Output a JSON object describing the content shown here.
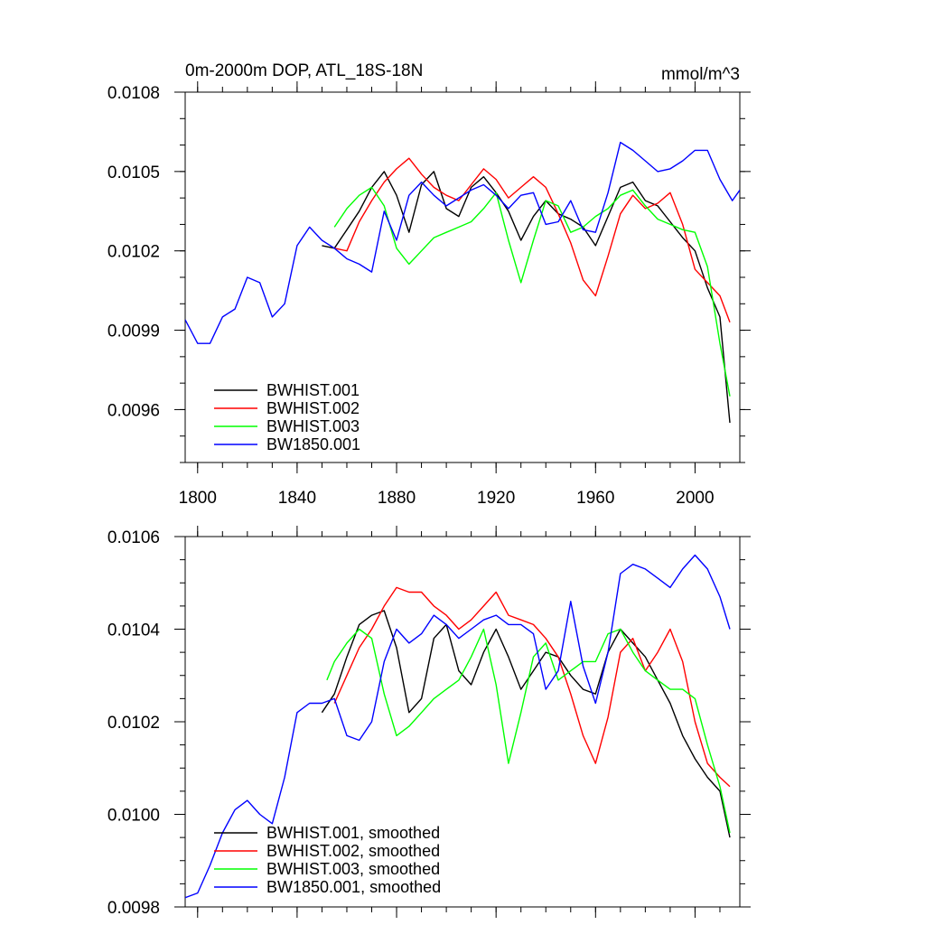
{
  "chart_data": [
    {
      "type": "line",
      "title": "0m-2000m DOP, ATL_18S-18N",
      "units": "mmol/m^3",
      "xlabel": "",
      "ylabel": "",
      "xlim": [
        1795,
        2018
      ],
      "ylim": [
        0.0094,
        0.0108
      ],
      "x_ticks": [
        1800,
        1840,
        1880,
        1920,
        1960,
        2000
      ],
      "y_ticks": [
        0.0096,
        0.0099,
        0.0102,
        0.0105,
        0.0108
      ],
      "y_tick_labels": [
        "0.0096",
        "0.0099",
        "0.0102",
        "0.0105",
        "0.0108"
      ],
      "legend_position": "bottom-left",
      "series": [
        {
          "name": "BWHIST.001",
          "color": "#000000",
          "x": [
            1850,
            1855,
            1860,
            1865,
            1870,
            1875,
            1880,
            1885,
            1890,
            1895,
            1900,
            1905,
            1910,
            1915,
            1920,
            1925,
            1930,
            1935,
            1940,
            1945,
            1950,
            1955,
            1960,
            1965,
            1970,
            1975,
            1980,
            1985,
            1990,
            1995,
            2000,
            2005,
            2010,
            2014
          ],
          "y": [
            0.01022,
            0.01021,
            0.01028,
            0.01035,
            0.01044,
            0.0105,
            0.01041,
            0.01027,
            0.01045,
            0.0105,
            0.01036,
            0.01033,
            0.01044,
            0.01048,
            0.01042,
            0.01035,
            0.01024,
            0.01033,
            0.01039,
            0.01034,
            0.01032,
            0.01029,
            0.01022,
            0.01033,
            0.01044,
            0.01046,
            0.01039,
            0.01037,
            0.01031,
            0.01025,
            0.0102,
            0.01006,
            0.00995,
            0.00955
          ]
        },
        {
          "name": "BWHIST.002",
          "color": "#ff0000",
          "x": [
            1855,
            1860,
            1865,
            1870,
            1875,
            1880,
            1885,
            1890,
            1895,
            1900,
            1905,
            1910,
            1915,
            1920,
            1925,
            1930,
            1935,
            1940,
            1945,
            1950,
            1955,
            1960,
            1965,
            1970,
            1975,
            1980,
            1985,
            1990,
            1995,
            2000,
            2005,
            2010,
            2014
          ],
          "y": [
            0.01021,
            0.0102,
            0.01031,
            0.01039,
            0.01046,
            0.01051,
            0.01055,
            0.01049,
            0.01044,
            0.01041,
            0.01039,
            0.01045,
            0.01051,
            0.01047,
            0.0104,
            0.01044,
            0.01048,
            0.01044,
            0.01034,
            0.01023,
            0.01009,
            0.01003,
            0.01018,
            0.01034,
            0.01041,
            0.01036,
            0.01038,
            0.01042,
            0.0103,
            0.01013,
            0.01008,
            0.01003,
            0.00993
          ]
        },
        {
          "name": "BWHIST.003",
          "color": "#00ff00",
          "x": [
            1855,
            1860,
            1865,
            1870,
            1875,
            1880,
            1885,
            1890,
            1895,
            1900,
            1905,
            1910,
            1915,
            1920,
            1925,
            1930,
            1935,
            1940,
            1945,
            1950,
            1955,
            1960,
            1965,
            1970,
            1975,
            1980,
            1985,
            1990,
            1995,
            2000,
            2005,
            2010,
            2014
          ],
          "y": [
            0.01029,
            0.01036,
            0.01041,
            0.01044,
            0.01037,
            0.01021,
            0.01015,
            0.0102,
            0.01025,
            0.01027,
            0.01029,
            0.01031,
            0.01036,
            0.01042,
            0.01024,
            0.01008,
            0.01024,
            0.01039,
            0.01037,
            0.01027,
            0.01029,
            0.01033,
            0.01036,
            0.01041,
            0.01043,
            0.01037,
            0.01032,
            0.0103,
            0.01028,
            0.01027,
            0.01014,
            0.00985,
            0.00965
          ]
        },
        {
          "name": "BW1850.001",
          "color": "#0000ff",
          "x": [
            1795,
            1800,
            1805,
            1810,
            1815,
            1820,
            1825,
            1830,
            1835,
            1840,
            1845,
            1850,
            1855,
            1860,
            1865,
            1870,
            1875,
            1880,
            1885,
            1890,
            1895,
            1900,
            1905,
            1910,
            1915,
            1920,
            1925,
            1930,
            1935,
            1940,
            1945,
            1950,
            1955,
            1960,
            1965,
            1970,
            1975,
            1980,
            1985,
            1990,
            1995,
            2000,
            2005,
            2010,
            2015,
            2018
          ],
          "y": [
            0.00994,
            0.00985,
            0.00985,
            0.00995,
            0.00998,
            0.0101,
            0.01008,
            0.00995,
            0.01,
            0.01022,
            0.01029,
            0.01024,
            0.01021,
            0.01017,
            0.01015,
            0.01012,
            0.01035,
            0.01024,
            0.01041,
            0.01046,
            0.01041,
            0.01037,
            0.0104,
            0.01043,
            0.01045,
            0.01041,
            0.01036,
            0.01041,
            0.01042,
            0.0103,
            0.01031,
            0.01039,
            0.01028,
            0.01027,
            0.01042,
            0.01061,
            0.01058,
            0.01054,
            0.0105,
            0.01051,
            0.01054,
            0.01058,
            0.01058,
            0.01047,
            0.01039,
            0.01043
          ]
        }
      ]
    },
    {
      "type": "line",
      "title": "",
      "xlabel": "",
      "ylabel": "",
      "xlim": [
        1795,
        2018
      ],
      "ylim": [
        0.0098,
        0.0106
      ],
      "x_ticks": [
        1800,
        1840,
        1880,
        1920,
        1960,
        2000
      ],
      "y_ticks": [
        0.0098,
        0.01,
        0.0102,
        0.0104,
        0.0106
      ],
      "y_tick_labels": [
        "0.0098",
        "0.0100",
        "0.0102",
        "0.0104",
        "0.0106"
      ],
      "legend_position": "bottom-left",
      "series": [
        {
          "name": "BWHIST.001, smoothed",
          "color": "#000000",
          "x": [
            1850,
            1855,
            1860,
            1865,
            1870,
            1875,
            1880,
            1885,
            1890,
            1895,
            1900,
            1905,
            1910,
            1915,
            1920,
            1925,
            1930,
            1935,
            1940,
            1945,
            1950,
            1955,
            1960,
            1965,
            1970,
            1975,
            1980,
            1985,
            1990,
            1995,
            2000,
            2005,
            2010,
            2014
          ],
          "y": [
            0.01022,
            0.01026,
            0.01034,
            0.01041,
            0.01043,
            0.01044,
            0.01036,
            0.01022,
            0.01025,
            0.01038,
            0.01041,
            0.01031,
            0.01028,
            0.01035,
            0.0104,
            0.01034,
            0.01027,
            0.01031,
            0.01035,
            0.01034,
            0.0103,
            0.01027,
            0.01026,
            0.01035,
            0.0104,
            0.01037,
            0.01034,
            0.01029,
            0.01024,
            0.01017,
            0.01012,
            0.01008,
            0.01005,
            0.00995
          ]
        },
        {
          "name": "BWHIST.002, smoothed",
          "color": "#ff0000",
          "x": [
            1855,
            1860,
            1865,
            1870,
            1875,
            1880,
            1885,
            1890,
            1895,
            1900,
            1905,
            1910,
            1915,
            1920,
            1925,
            1930,
            1935,
            1940,
            1945,
            1950,
            1955,
            1960,
            1965,
            1970,
            1975,
            1980,
            1985,
            1990,
            1995,
            2000,
            2005,
            2010,
            2014
          ],
          "y": [
            0.01024,
            0.0103,
            0.01036,
            0.0104,
            0.01045,
            0.01049,
            0.01048,
            0.01048,
            0.01045,
            0.01043,
            0.0104,
            0.01042,
            0.01045,
            0.01048,
            0.01043,
            0.01042,
            0.01041,
            0.01038,
            0.01034,
            0.01026,
            0.01017,
            0.01011,
            0.01021,
            0.01035,
            0.01038,
            0.01031,
            0.01035,
            0.0104,
            0.01033,
            0.0102,
            0.01011,
            0.01008,
            0.01006
          ]
        },
        {
          "name": "BWHIST.003, smoothed",
          "color": "#00ff00",
          "x": [
            1852,
            1855,
            1860,
            1865,
            1870,
            1875,
            1880,
            1885,
            1890,
            1895,
            1900,
            1905,
            1910,
            1915,
            1920,
            1925,
            1930,
            1935,
            1940,
            1945,
            1950,
            1955,
            1960,
            1965,
            1970,
            1975,
            1980,
            1985,
            1990,
            1995,
            2000,
            2005,
            2010,
            2014
          ],
          "y": [
            0.01029,
            0.01033,
            0.01037,
            0.0104,
            0.01038,
            0.01026,
            0.01017,
            0.01019,
            0.01022,
            0.01025,
            0.01027,
            0.01029,
            0.01034,
            0.0104,
            0.01028,
            0.01011,
            0.01022,
            0.01034,
            0.01037,
            0.01029,
            0.01031,
            0.01033,
            0.01033,
            0.01039,
            0.0104,
            0.01035,
            0.01031,
            0.01029,
            0.01027,
            0.01027,
            0.01025,
            0.01015,
            0.01006,
            0.00996
          ]
        },
        {
          "name": "BW1850.001, smoothed",
          "color": "#0000ff",
          "x": [
            1795,
            1800,
            1805,
            1810,
            1815,
            1820,
            1825,
            1830,
            1835,
            1840,
            1845,
            1850,
            1855,
            1860,
            1865,
            1870,
            1875,
            1880,
            1885,
            1890,
            1895,
            1900,
            1905,
            1910,
            1915,
            1920,
            1925,
            1930,
            1935,
            1940,
            1945,
            1950,
            1955,
            1960,
            1965,
            1970,
            1975,
            1980,
            1985,
            1990,
            1995,
            2000,
            2005,
            2010,
            2014
          ],
          "y": [
            0.00982,
            0.00983,
            0.00989,
            0.00996,
            0.01001,
            0.01003,
            0.01,
            0.00998,
            0.01008,
            0.01022,
            0.01024,
            0.01024,
            0.01025,
            0.01017,
            0.01016,
            0.0102,
            0.01033,
            0.0104,
            0.01037,
            0.01039,
            0.01043,
            0.01041,
            0.01038,
            0.0104,
            0.01042,
            0.01043,
            0.01041,
            0.01041,
            0.01039,
            0.01027,
            0.01031,
            0.01046,
            0.01032,
            0.01024,
            0.01035,
            0.01052,
            0.01054,
            0.01053,
            0.01051,
            0.01049,
            0.01053,
            0.01056,
            0.01053,
            0.01047,
            0.0104
          ]
        }
      ]
    }
  ]
}
